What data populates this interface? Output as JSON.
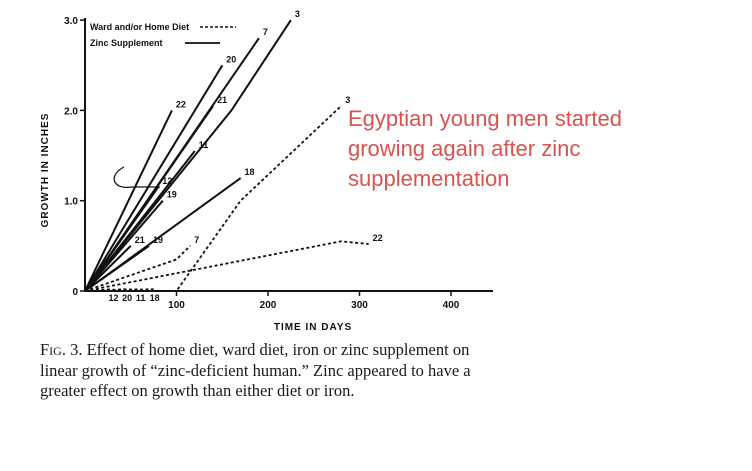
{
  "chart_data": {
    "type": "line",
    "xlabel": "TIME IN DAYS",
    "ylabel": "GROWTH IN INCHES",
    "xlim": [
      0,
      430
    ],
    "ylim": [
      0,
      3.0
    ],
    "xticks": [
      "100",
      "200",
      "300",
      "400"
    ],
    "yticks": [
      "0",
      "1.0",
      "2.0",
      "3.0"
    ],
    "legend": {
      "placement": "top-left",
      "entries": [
        {
          "label": "Ward and/or Home Diet",
          "style": "dashed"
        },
        {
          "label": "Zinc Supplement",
          "style": "solid"
        }
      ]
    },
    "series": [
      {
        "label": "3",
        "style": "solid",
        "x": [
          0,
          160,
          225
        ],
        "y": [
          0,
          2.0,
          3.0
        ]
      },
      {
        "label": "7",
        "style": "solid",
        "x": [
          0,
          190
        ],
        "y": [
          0,
          2.8
        ]
      },
      {
        "label": "20",
        "style": "solid",
        "x": [
          0,
          150
        ],
        "y": [
          0,
          2.5
        ]
      },
      {
        "label": "22",
        "style": "solid",
        "x": [
          0,
          95
        ],
        "y": [
          0,
          2.0
        ]
      },
      {
        "label": "21",
        "style": "solid",
        "x": [
          0,
          140
        ],
        "y": [
          0,
          2.05
        ]
      },
      {
        "label": "11",
        "style": "solid",
        "x": [
          0,
          120
        ],
        "y": [
          0,
          1.55
        ]
      },
      {
        "label": "12",
        "style": "solid",
        "x": [
          0,
          80
        ],
        "y": [
          0,
          1.15
        ]
      },
      {
        "label": "19",
        "style": "solid",
        "x": [
          0,
          85
        ],
        "y": [
          0,
          1.0
        ]
      },
      {
        "label": "18",
        "style": "solid",
        "x": [
          0,
          170
        ],
        "y": [
          0,
          1.25
        ]
      },
      {
        "label": "21",
        "style": "solid",
        "x": [
          0,
          50
        ],
        "y": [
          0,
          0.5
        ]
      },
      {
        "label": "19",
        "style": "solid",
        "x": [
          0,
          70
        ],
        "y": [
          0,
          0.5
        ]
      },
      {
        "label": "3",
        "style": "dashed",
        "x": [
          0,
          100,
          170,
          280
        ],
        "y": [
          0,
          0,
          1.0,
          2.05
        ]
      },
      {
        "label": "7",
        "style": "dashed",
        "x": [
          0,
          100,
          115
        ],
        "y": [
          0,
          0.35,
          0.5
        ]
      },
      {
        "label": "22",
        "style": "dashed",
        "x": [
          0,
          280,
          310
        ],
        "y": [
          0,
          0.55,
          0.52
        ]
      },
      {
        "label": "12",
        "style": "dashed",
        "x": [
          0,
          30
        ],
        "y": [
          0,
          0.02
        ]
      },
      {
        "label": "20",
        "style": "dashed",
        "x": [
          0,
          45
        ],
        "y": [
          0,
          0.02
        ]
      },
      {
        "label": "11",
        "style": "dashed",
        "x": [
          0,
          60
        ],
        "y": [
          0,
          0.02
        ]
      },
      {
        "label": "18",
        "style": "dashed",
        "x": [
          0,
          75
        ],
        "y": [
          0,
          0.02
        ]
      }
    ]
  },
  "caption": {
    "fig_label": "Fig. 3.",
    "text": "Effect of home diet, ward diet, iron or zinc supplement on linear growth of “zinc-deficient human.” Zinc appeared to have a greater effect on growth than either diet or iron."
  },
  "annotation": {
    "text": "Egyptian young men started growing again after zinc supplementation"
  }
}
